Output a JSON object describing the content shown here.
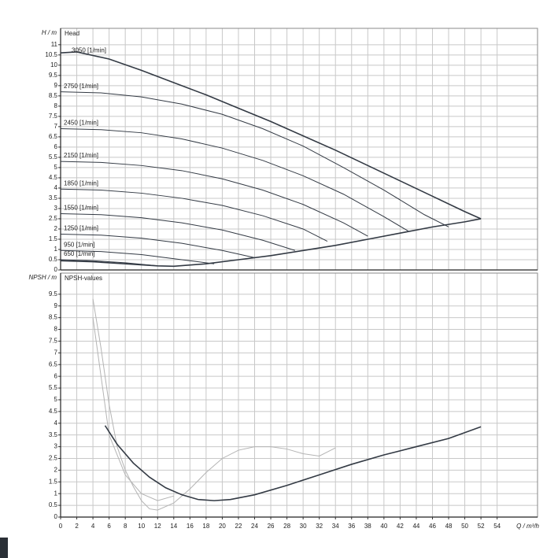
{
  "chart_data": [
    {
      "type": "line",
      "y_label": "H / m",
      "title": "Head",
      "ylim": [
        0,
        11.8
      ],
      "yticks": [
        0,
        0.5,
        1,
        1.5,
        2,
        2.5,
        3,
        3.5,
        4,
        4.5,
        5,
        5.5,
        6,
        6.5,
        7,
        7.5,
        8,
        8.5,
        9,
        9.5,
        10,
        10.5,
        11
      ],
      "grid": true,
      "series": [
        {
          "name": "3050 [1/min]",
          "color": "#333a44",
          "linewidth": 1.6,
          "x": [
            0,
            2,
            6,
            10,
            14,
            18,
            22,
            26,
            30,
            34,
            38,
            42,
            46,
            50,
            52
          ],
          "values": [
            10.6,
            10.65,
            10.3,
            9.75,
            9.15,
            8.55,
            7.9,
            7.25,
            6.55,
            5.85,
            5.1,
            4.35,
            3.6,
            2.85,
            2.5
          ]
        },
        {
          "name": "2750 [1/min]",
          "color": "#333a44",
          "linewidth": 1,
          "x": [
            0,
            5,
            10,
            15,
            20,
            25,
            30,
            35,
            40,
            45,
            48
          ],
          "values": [
            8.7,
            8.65,
            8.45,
            8.1,
            7.6,
            6.9,
            6.05,
            5.0,
            3.9,
            2.7,
            2.1
          ]
        },
        {
          "name": "2450 [1/min]",
          "color": "#333a44",
          "linewidth": 1,
          "x": [
            0,
            5,
            10,
            15,
            20,
            25,
            30,
            35,
            40,
            43
          ],
          "values": [
            6.9,
            6.85,
            6.7,
            6.4,
            5.95,
            5.35,
            4.6,
            3.7,
            2.6,
            1.9
          ]
        },
        {
          "name": "2150 [1/min]",
          "color": "#333a44",
          "linewidth": 1,
          "x": [
            0,
            5,
            10,
            15,
            20,
            25,
            30,
            35,
            38
          ],
          "values": [
            5.3,
            5.25,
            5.1,
            4.85,
            4.45,
            3.9,
            3.2,
            2.3,
            1.65
          ]
        },
        {
          "name": "1850 [1/min]",
          "color": "#333a44",
          "linewidth": 1,
          "x": [
            0,
            5,
            10,
            15,
            20,
            25,
            30,
            33
          ],
          "values": [
            3.95,
            3.9,
            3.75,
            3.5,
            3.15,
            2.65,
            2.0,
            1.4
          ]
        },
        {
          "name": "1550 [1/min]",
          "color": "#333a44",
          "linewidth": 1,
          "x": [
            0,
            5,
            10,
            15,
            20,
            25,
            29
          ],
          "values": [
            2.75,
            2.7,
            2.55,
            2.3,
            1.95,
            1.45,
            0.95
          ]
        },
        {
          "name": "1250 [1/min]",
          "color": "#333a44",
          "linewidth": 1,
          "x": [
            0,
            5,
            10,
            15,
            20,
            24
          ],
          "values": [
            1.75,
            1.7,
            1.55,
            1.3,
            0.95,
            0.6
          ]
        },
        {
          "name": "950 [1/min]",
          "color": "#333a44",
          "linewidth": 1,
          "x": [
            0,
            5,
            10,
            15,
            19
          ],
          "values": [
            0.95,
            0.9,
            0.75,
            0.5,
            0.3
          ]
        },
        {
          "name": "650 [1/min]",
          "color": "#333a44",
          "linewidth": 1,
          "x": [
            0,
            4,
            8,
            12
          ],
          "values": [
            0.5,
            0.45,
            0.35,
            0.2
          ]
        },
        {
          "color": "#333a44",
          "linewidth": 1.6,
          "x": [
            0,
            4,
            8,
            12,
            14,
            18,
            22,
            26,
            30,
            34,
            38,
            42,
            46,
            50,
            52
          ],
          "values": [
            0.45,
            0.4,
            0.3,
            0.2,
            0.18,
            0.3,
            0.5,
            0.7,
            0.95,
            1.2,
            1.5,
            1.8,
            2.1,
            2.35,
            2.5
          ]
        }
      ]
    },
    {
      "type": "line",
      "y_label": "NPSH / m",
      "title": "NPSH-values",
      "x_label": "Q / m³/h",
      "xlim": [
        0,
        59
      ],
      "xticks": [
        0,
        2,
        4,
        6,
        8,
        10,
        12,
        14,
        16,
        18,
        20,
        22,
        24,
        26,
        28,
        30,
        32,
        34,
        36,
        38,
        40,
        42,
        44,
        46,
        48,
        50,
        52,
        54
      ],
      "ylim": [
        0,
        10.4
      ],
      "yticks": [
        0,
        0.5,
        1,
        1.5,
        2,
        2.5,
        3,
        3.5,
        4,
        4.5,
        5,
        5.5,
        6,
        6.5,
        7,
        7.5,
        8,
        8.5,
        9,
        9.5
      ],
      "grid": true,
      "series": [
        {
          "color": "#b4b4b4",
          "linewidth": 1,
          "x": [
            4,
            5,
            6,
            7,
            8,
            9,
            10,
            11,
            12,
            14,
            16,
            18,
            20,
            22,
            24,
            26,
            28,
            30,
            32,
            34
          ],
          "values": [
            9.3,
            7.2,
            4.8,
            3.0,
            2.0,
            1.3,
            0.7,
            0.35,
            0.3,
            0.6,
            1.2,
            1.9,
            2.5,
            2.85,
            3.0,
            3.0,
            2.9,
            2.7,
            2.6,
            2.95
          ]
        },
        {
          "color": "#b4b4b4",
          "linewidth": 1,
          "x": [
            4,
            6,
            8,
            10,
            12,
            14
          ],
          "values": [
            8.5,
            3.5,
            1.8,
            1.0,
            0.7,
            0.9
          ]
        },
        {
          "color": "#333a44",
          "linewidth": 1.6,
          "x": [
            5.5,
            7,
            9,
            11,
            13,
            15,
            17,
            19,
            21,
            24,
            28,
            32,
            36,
            40,
            44,
            48,
            52
          ],
          "values": [
            3.9,
            3.1,
            2.3,
            1.7,
            1.25,
            0.95,
            0.75,
            0.7,
            0.75,
            0.95,
            1.35,
            1.8,
            2.25,
            2.65,
            3.0,
            3.35,
            3.85
          ]
        }
      ]
    }
  ]
}
